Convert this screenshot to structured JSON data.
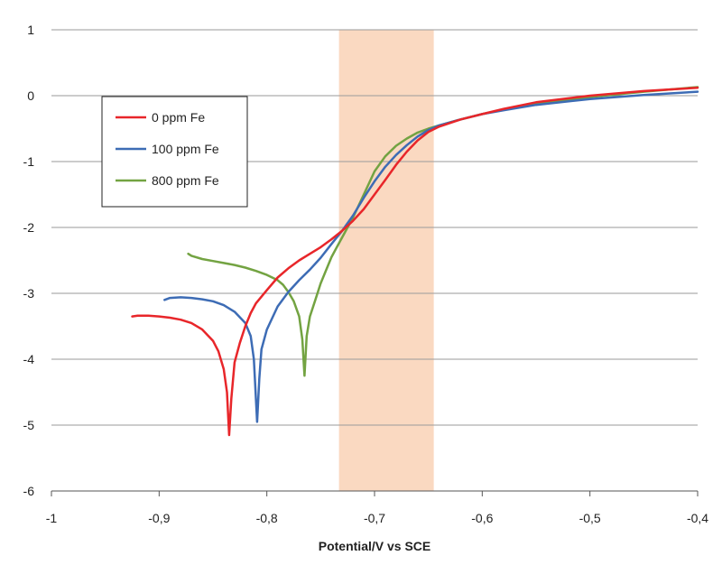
{
  "chart_data": {
    "type": "line",
    "title": "",
    "xlabel": "Potential/V vs SCE",
    "ylabel": "",
    "xlim": [
      -1,
      -0.4
    ],
    "ylim": [
      -6,
      1
    ],
    "x_ticks": [
      -1,
      -0.9,
      -0.8,
      -0.7,
      -0.6,
      -0.5,
      -0.4
    ],
    "x_tick_labels": [
      "-1",
      "-0,9",
      "-0,8",
      "-0,7",
      "-0,6",
      "-0,5",
      "-0,4"
    ],
    "y_ticks": [
      1,
      0,
      -1,
      -2,
      -3,
      -4,
      -5,
      -6
    ],
    "y_tick_labels": [
      "1",
      "0",
      "-1",
      "-2",
      "-3",
      "-4",
      "-5",
      "-6"
    ],
    "grid": "horizontal",
    "legend_position": "top-left",
    "highlight_band": {
      "x_range": [
        -0.733,
        -0.645
      ],
      "color": "#fad9c1"
    },
    "series": [
      {
        "name": "0 ppm Fe",
        "color": "#e8262a",
        "points": [
          [
            -0.925,
            -3.35
          ],
          [
            -0.92,
            -3.34
          ],
          [
            -0.91,
            -3.34
          ],
          [
            -0.9,
            -3.35
          ],
          [
            -0.89,
            -3.37
          ],
          [
            -0.88,
            -3.4
          ],
          [
            -0.87,
            -3.45
          ],
          [
            -0.86,
            -3.55
          ],
          [
            -0.85,
            -3.72
          ],
          [
            -0.845,
            -3.88
          ],
          [
            -0.84,
            -4.15
          ],
          [
            -0.837,
            -4.5
          ],
          [
            -0.835,
            -5.15
          ],
          [
            -0.833,
            -4.6
          ],
          [
            -0.83,
            -4.05
          ],
          [
            -0.825,
            -3.75
          ],
          [
            -0.82,
            -3.5
          ],
          [
            -0.815,
            -3.3
          ],
          [
            -0.81,
            -3.15
          ],
          [
            -0.8,
            -2.95
          ],
          [
            -0.79,
            -2.76
          ],
          [
            -0.78,
            -2.62
          ],
          [
            -0.77,
            -2.5
          ],
          [
            -0.76,
            -2.4
          ],
          [
            -0.75,
            -2.3
          ],
          [
            -0.74,
            -2.18
          ],
          [
            -0.73,
            -2.05
          ],
          [
            -0.72,
            -1.9
          ],
          [
            -0.71,
            -1.72
          ],
          [
            -0.7,
            -1.5
          ],
          [
            -0.69,
            -1.28
          ],
          [
            -0.68,
            -1.05
          ],
          [
            -0.67,
            -0.85
          ],
          [
            -0.66,
            -0.68
          ],
          [
            -0.65,
            -0.55
          ],
          [
            -0.64,
            -0.47
          ],
          [
            -0.62,
            -0.36
          ],
          [
            -0.6,
            -0.28
          ],
          [
            -0.58,
            -0.2
          ],
          [
            -0.55,
            -0.1
          ],
          [
            -0.5,
            0.0
          ],
          [
            -0.45,
            0.07
          ],
          [
            -0.4,
            0.12
          ]
        ]
      },
      {
        "name": "100 ppm Fe",
        "color": "#3d6cb5",
        "points": [
          [
            -0.895,
            -3.1
          ],
          [
            -0.89,
            -3.07
          ],
          [
            -0.88,
            -3.06
          ],
          [
            -0.87,
            -3.07
          ],
          [
            -0.86,
            -3.09
          ],
          [
            -0.85,
            -3.12
          ],
          [
            -0.84,
            -3.18
          ],
          [
            -0.83,
            -3.28
          ],
          [
            -0.82,
            -3.45
          ],
          [
            -0.815,
            -3.65
          ],
          [
            -0.812,
            -4.0
          ],
          [
            -0.809,
            -4.95
          ],
          [
            -0.807,
            -4.3
          ],
          [
            -0.805,
            -3.85
          ],
          [
            -0.8,
            -3.55
          ],
          [
            -0.79,
            -3.2
          ],
          [
            -0.78,
            -2.98
          ],
          [
            -0.77,
            -2.8
          ],
          [
            -0.76,
            -2.64
          ],
          [
            -0.75,
            -2.46
          ],
          [
            -0.74,
            -2.25
          ],
          [
            -0.73,
            -2.05
          ],
          [
            -0.72,
            -1.82
          ],
          [
            -0.71,
            -1.55
          ],
          [
            -0.7,
            -1.3
          ],
          [
            -0.69,
            -1.08
          ],
          [
            -0.68,
            -0.9
          ],
          [
            -0.67,
            -0.75
          ],
          [
            -0.66,
            -0.62
          ],
          [
            -0.65,
            -0.52
          ],
          [
            -0.64,
            -0.45
          ],
          [
            -0.62,
            -0.36
          ],
          [
            -0.6,
            -0.28
          ],
          [
            -0.58,
            -0.22
          ],
          [
            -0.55,
            -0.14
          ],
          [
            -0.5,
            -0.05
          ],
          [
            -0.45,
            0.01
          ],
          [
            -0.4,
            0.06
          ]
        ]
      },
      {
        "name": "800 ppm Fe",
        "color": "#73a342",
        "points": [
          [
            -0.873,
            -2.4
          ],
          [
            -0.87,
            -2.43
          ],
          [
            -0.86,
            -2.48
          ],
          [
            -0.85,
            -2.51
          ],
          [
            -0.84,
            -2.54
          ],
          [
            -0.83,
            -2.57
          ],
          [
            -0.82,
            -2.61
          ],
          [
            -0.81,
            -2.66
          ],
          [
            -0.8,
            -2.72
          ],
          [
            -0.79,
            -2.8
          ],
          [
            -0.785,
            -2.87
          ],
          [
            -0.78,
            -2.98
          ],
          [
            -0.775,
            -3.12
          ],
          [
            -0.77,
            -3.35
          ],
          [
            -0.767,
            -3.7
          ],
          [
            -0.765,
            -4.25
          ],
          [
            -0.763,
            -3.65
          ],
          [
            -0.76,
            -3.35
          ],
          [
            -0.755,
            -3.1
          ],
          [
            -0.75,
            -2.85
          ],
          [
            -0.745,
            -2.65
          ],
          [
            -0.74,
            -2.45
          ],
          [
            -0.735,
            -2.3
          ],
          [
            -0.73,
            -2.15
          ],
          [
            -0.72,
            -1.85
          ],
          [
            -0.71,
            -1.5
          ],
          [
            -0.7,
            -1.15
          ],
          [
            -0.69,
            -0.92
          ],
          [
            -0.68,
            -0.76
          ],
          [
            -0.67,
            -0.65
          ],
          [
            -0.66,
            -0.56
          ],
          [
            -0.65,
            -0.5
          ],
          [
            -0.64,
            -0.45
          ],
          [
            -0.62,
            -0.36
          ],
          [
            -0.6,
            -0.28
          ],
          [
            -0.58,
            -0.21
          ],
          [
            -0.55,
            -0.12
          ],
          [
            -0.5,
            -0.02
          ],
          [
            -0.45,
            0.06
          ],
          [
            -0.4,
            0.13
          ]
        ]
      }
    ]
  }
}
